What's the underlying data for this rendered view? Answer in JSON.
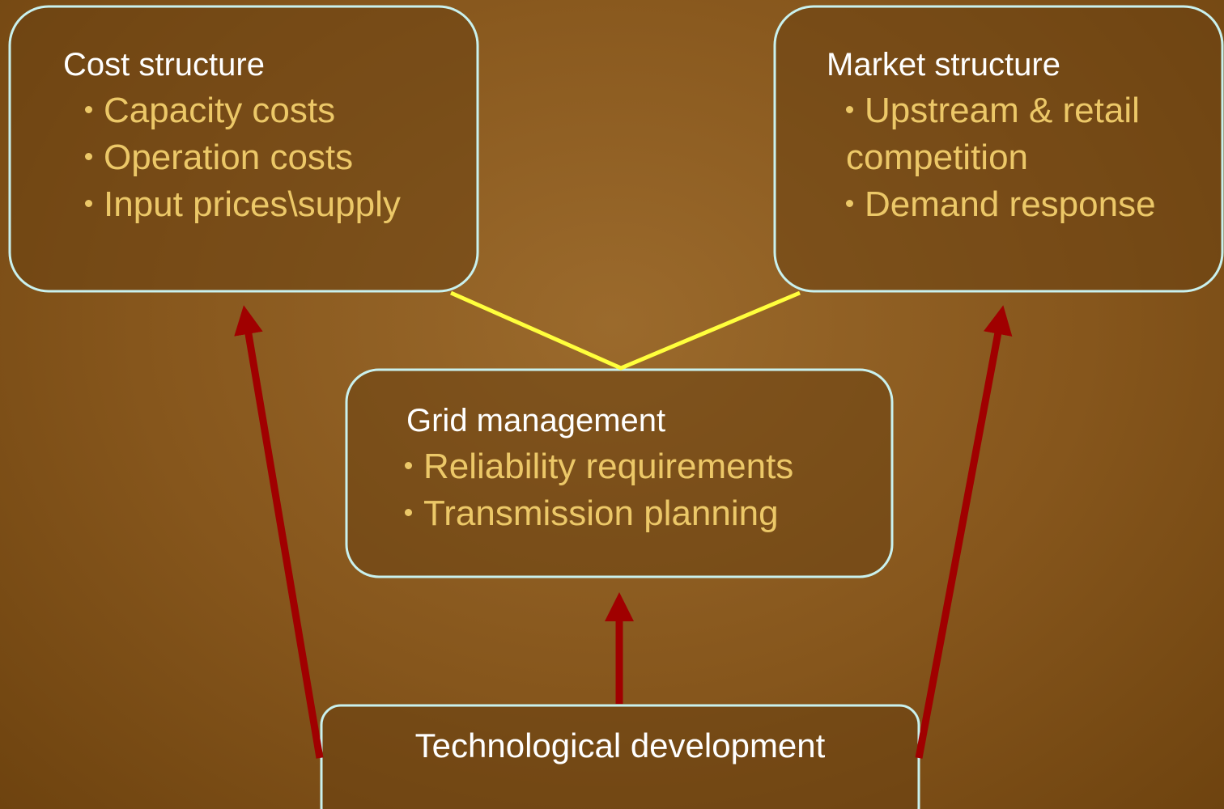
{
  "nodes": [
    {
      "title": "Cost structure",
      "items": [
        "Capacity costs",
        "Operation costs",
        "Input prices\\supply"
      ]
    },
    {
      "title": "Market structure",
      "items": [
        "Upstream & retail competition",
        "Demand response"
      ]
    },
    {
      "title": "Grid management",
      "items": [
        "Reliability requirements",
        "Transmission planning"
      ]
    },
    {
      "title": "Technological development",
      "items": []
    }
  ]
}
